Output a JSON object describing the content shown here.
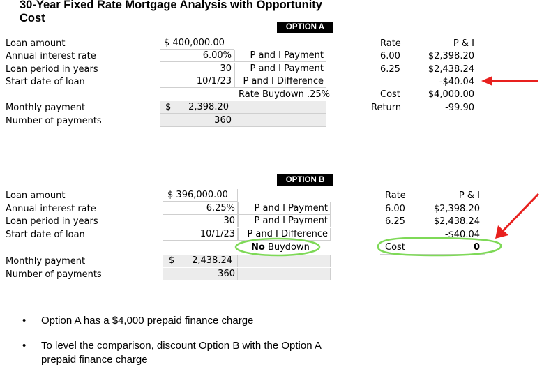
{
  "title": "30-Year Fixed Rate Mortgage Analysis with Opportunity Cost",
  "option_a": {
    "tag": "OPTION A",
    "labels": [
      "Loan amount",
      "Annual interest rate",
      "Loan period in years",
      "Start date of loan",
      "Monthly payment",
      "Number of payments"
    ],
    "loan_amount_symbol": "$",
    "loan_amount": "400,000.00",
    "rate": "6.00%",
    "period": "30",
    "start_date": "10/1/23",
    "monthly_symbol": "$",
    "monthly_payment": "2,398.20",
    "num_payments": "360",
    "notes": [
      "P and I Payment",
      "P and I Payment",
      "P and I Difference",
      "Rate Buydown .25%"
    ],
    "side": {
      "rate_header": "Rate",
      "pi_header": "P & I",
      "rows": [
        {
          "rate": "6.00",
          "pi": "$2,398.20"
        },
        {
          "rate": "6.25",
          "pi": "$2,438.24"
        }
      ],
      "difference": "-$40.04",
      "cost_label": "Cost",
      "cost_value": "$4,000.00",
      "return_label": "Return",
      "return_value": "-99.90"
    }
  },
  "option_b": {
    "tag": "OPTION B",
    "labels": [
      "Loan amount",
      "Annual interest rate",
      "Loan period in years",
      "Start date of loan",
      "Monthly payment",
      "Number of payments"
    ],
    "loan_amount_symbol": "$",
    "loan_amount": "396,000.00",
    "rate": "6.25%",
    "period": "30",
    "start_date": "10/1/23",
    "monthly_symbol": "$",
    "monthly_payment": "2,438.24",
    "num_payments": "360",
    "notes": [
      "P and I Payment",
      "P and I Payment",
      "P and I Difference"
    ],
    "no_buydown_bold": "No",
    "no_buydown_rest": " Buydown",
    "side": {
      "rate_header": "Rate",
      "pi_header": "P & I",
      "rows": [
        {
          "rate": "6.00",
          "pi": "$2,398.20"
        },
        {
          "rate": "6.25",
          "pi": "$2,438.24"
        }
      ],
      "difference": "-$40.04",
      "cost_label": "Cost",
      "cost_value": "0"
    }
  },
  "bullets": [
    "Option A has a $4,000 prepaid finance charge",
    "To level the comparison, discount Option B with the Option A prepaid finance charge"
  ],
  "colors": {
    "arrow": "#e8201e",
    "highlight": "#7ed957"
  }
}
